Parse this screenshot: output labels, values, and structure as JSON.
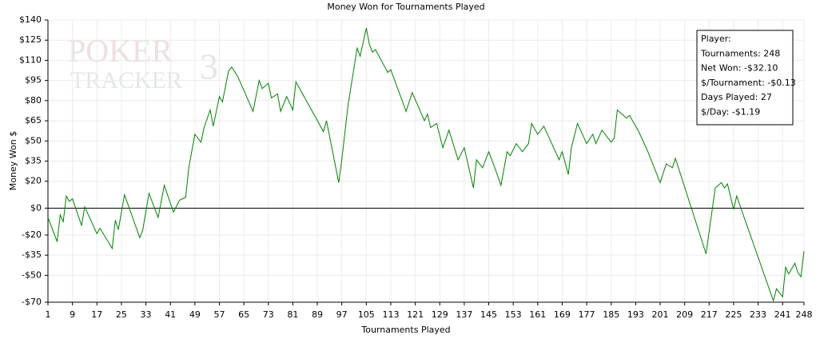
{
  "chart_data": {
    "type": "line",
    "title": "Money Won for Tournaments Played",
    "xlabel": "Tournaments Played",
    "ylabel": "Money Won $",
    "watermark": [
      "POKER",
      "TRACKER",
      "3"
    ],
    "annotation": [
      "Player:",
      "Tournaments: 248",
      "Net Won: -$32.10",
      "$/Tournament: -$0.13",
      "Days Played: 27",
      "$/Day: -$1.19"
    ],
    "xlim": [
      1,
      248
    ],
    "xticks": [
      1,
      9,
      17,
      25,
      33,
      41,
      49,
      57,
      65,
      73,
      81,
      89,
      97,
      105,
      113,
      121,
      129,
      137,
      145,
      153,
      161,
      169,
      177,
      185,
      193,
      201,
      209,
      217,
      225,
      233,
      241,
      248
    ],
    "ylim": [
      -70,
      140
    ],
    "yticks": [
      {
        "value": -70,
        "label": "-$70"
      },
      {
        "value": -50,
        "label": "-$50"
      },
      {
        "value": -35,
        "label": "-$35"
      },
      {
        "value": -20,
        "label": "-$20"
      },
      {
        "value": 0,
        "label": "$0"
      },
      {
        "value": 20,
        "label": "$20"
      },
      {
        "value": 35,
        "label": "$35"
      },
      {
        "value": 50,
        "label": "$50"
      },
      {
        "value": 65,
        "label": "$65"
      },
      {
        "value": 80,
        "label": "$80"
      },
      {
        "value": 95,
        "label": "$95"
      },
      {
        "value": 110,
        "label": "$110"
      },
      {
        "value": 125,
        "label": "$125"
      },
      {
        "value": 140,
        "label": "$140"
      }
    ],
    "grid": true,
    "series": [
      {
        "color": "#008000",
        "x": [
          1,
          4,
          5,
          6,
          7,
          8,
          9,
          12,
          13,
          17,
          18,
          22,
          23,
          24,
          26,
          31,
          32,
          34,
          37,
          39,
          42,
          44,
          46,
          47,
          49,
          51,
          52,
          54,
          55,
          57,
          58,
          60,
          61,
          63,
          68,
          70,
          71,
          73,
          74,
          76,
          77,
          79,
          81,
          82,
          91,
          92,
          96,
          97,
          99,
          102,
          103,
          105,
          106,
          107,
          108,
          112,
          113,
          118,
          120,
          124,
          125,
          126,
          128,
          130,
          132,
          135,
          137,
          140,
          141,
          143,
          145,
          147,
          149,
          151,
          152,
          154,
          156,
          158,
          159,
          161,
          163,
          168,
          169,
          171,
          172,
          174,
          177,
          179,
          180,
          182,
          185,
          186,
          187,
          190,
          191,
          194,
          197,
          201,
          203,
          205,
          206,
          216,
          219,
          221,
          222,
          223,
          225,
          226,
          238,
          239,
          241,
          242,
          243,
          245,
          246,
          247,
          248
        ],
        "values": [
          -7,
          -25,
          -5,
          -10,
          9,
          5,
          7,
          -13,
          1,
          -19,
          -15,
          -30,
          -9,
          -16,
          10,
          -22,
          -16,
          11,
          -7,
          17,
          -3,
          6,
          8,
          30,
          55,
          49,
          60,
          73,
          61,
          83,
          79,
          102,
          105,
          98,
          72,
          95,
          89,
          93,
          82,
          85,
          72,
          83,
          73,
          94,
          57,
          65,
          19,
          36,
          76,
          119,
          113,
          134,
          122,
          116,
          118,
          101,
          103,
          72,
          86,
          65,
          70,
          60,
          63,
          45,
          58,
          36,
          45,
          15,
          36,
          30,
          42,
          30,
          17,
          42,
          39,
          48,
          42,
          48,
          63,
          55,
          61,
          36,
          42,
          25,
          45,
          63,
          48,
          55,
          48,
          58,
          49,
          52,
          73,
          67,
          69,
          57,
          42,
          19,
          33,
          30,
          37,
          -34,
          15,
          19,
          15,
          18,
          -1,
          9,
          -69,
          -60,
          -66,
          -44,
          -49,
          -41,
          -48,
          -51,
          -32
        ]
      }
    ]
  }
}
